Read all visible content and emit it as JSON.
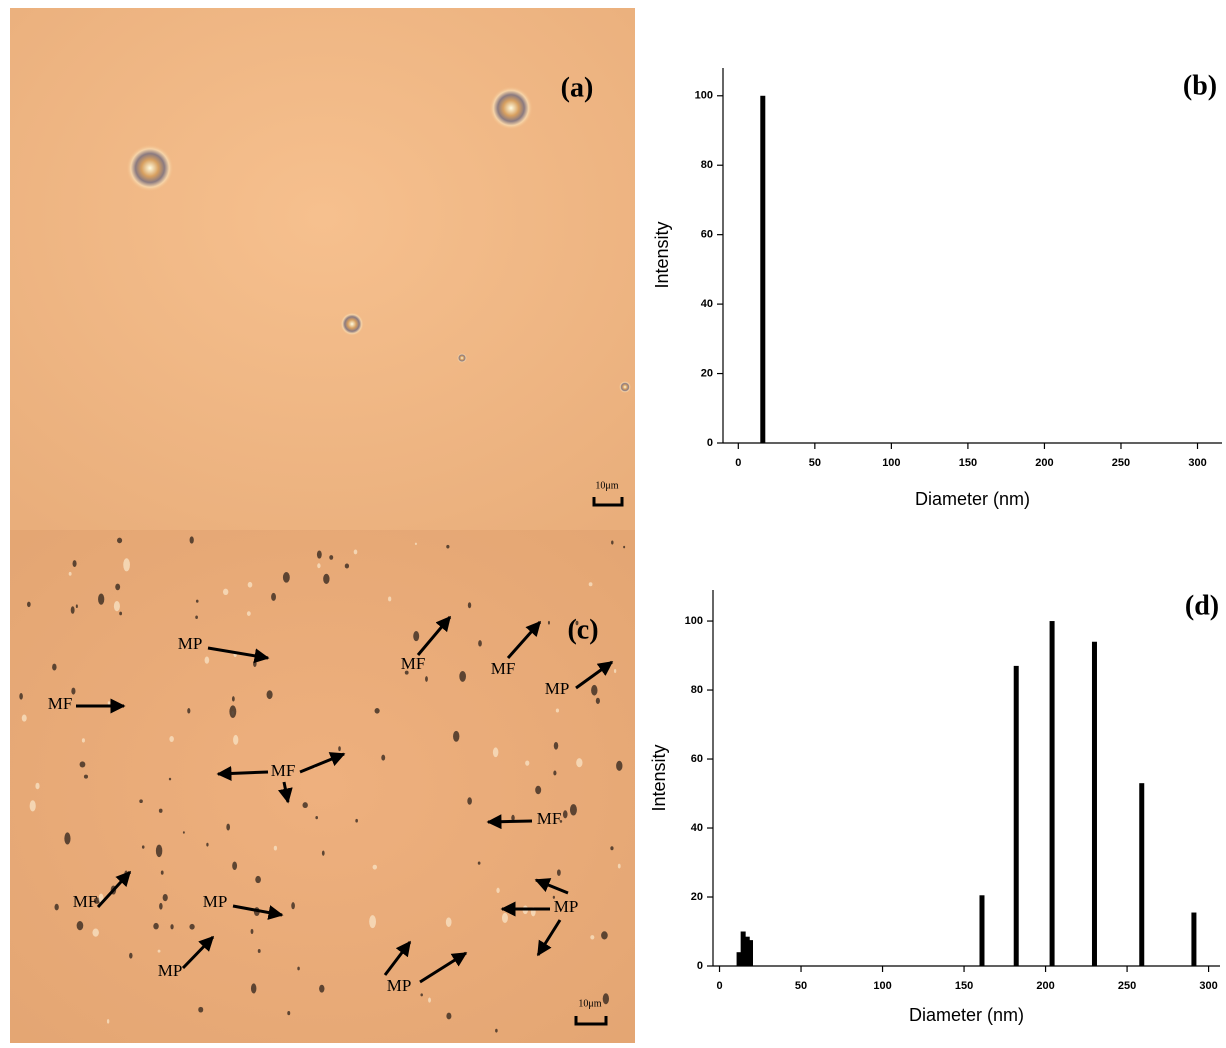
{
  "panels": {
    "a": {
      "label": "(a)",
      "scale_bar": "10μm"
    },
    "c": {
      "label": "(c)",
      "scale_bar": "10μm",
      "annotations": [
        "MP",
        "MF",
        "MF",
        "MP",
        "MF",
        "MF",
        "MF",
        "MF",
        "MP",
        "MP",
        "MP",
        "MP"
      ]
    }
  },
  "chart_data": [
    {
      "type": "bar",
      "label": "(b)",
      "x_label": "Diameter (nm)",
      "y_label": "Intensity",
      "x": [
        16
      ],
      "values": [
        100
      ],
      "color": "#000000",
      "xlim": [
        -10,
        316
      ],
      "xticks": [
        0,
        50,
        100,
        150,
        200,
        250,
        300
      ],
      "ylim": [
        0,
        108
      ],
      "yticks": [
        0,
        20,
        40,
        60,
        80,
        100
      ]
    },
    {
      "type": "bar",
      "label": "(d)",
      "x_label": "Diameter (nm)",
      "y_label": "Intensity",
      "x": [
        12,
        14.5,
        17,
        19,
        161,
        182,
        204,
        230,
        259,
        291
      ],
      "values": [
        4,
        10,
        8.5,
        7.5,
        20.5,
        87,
        100,
        94,
        53,
        15.5
      ],
      "color": "#000000",
      "xlim": [
        -4,
        307
      ],
      "xticks": [
        0,
        50,
        100,
        150,
        200,
        250,
        300
      ],
      "ylim": [
        0,
        109
      ],
      "yticks": [
        0,
        20,
        40,
        60,
        80,
        100
      ]
    }
  ]
}
